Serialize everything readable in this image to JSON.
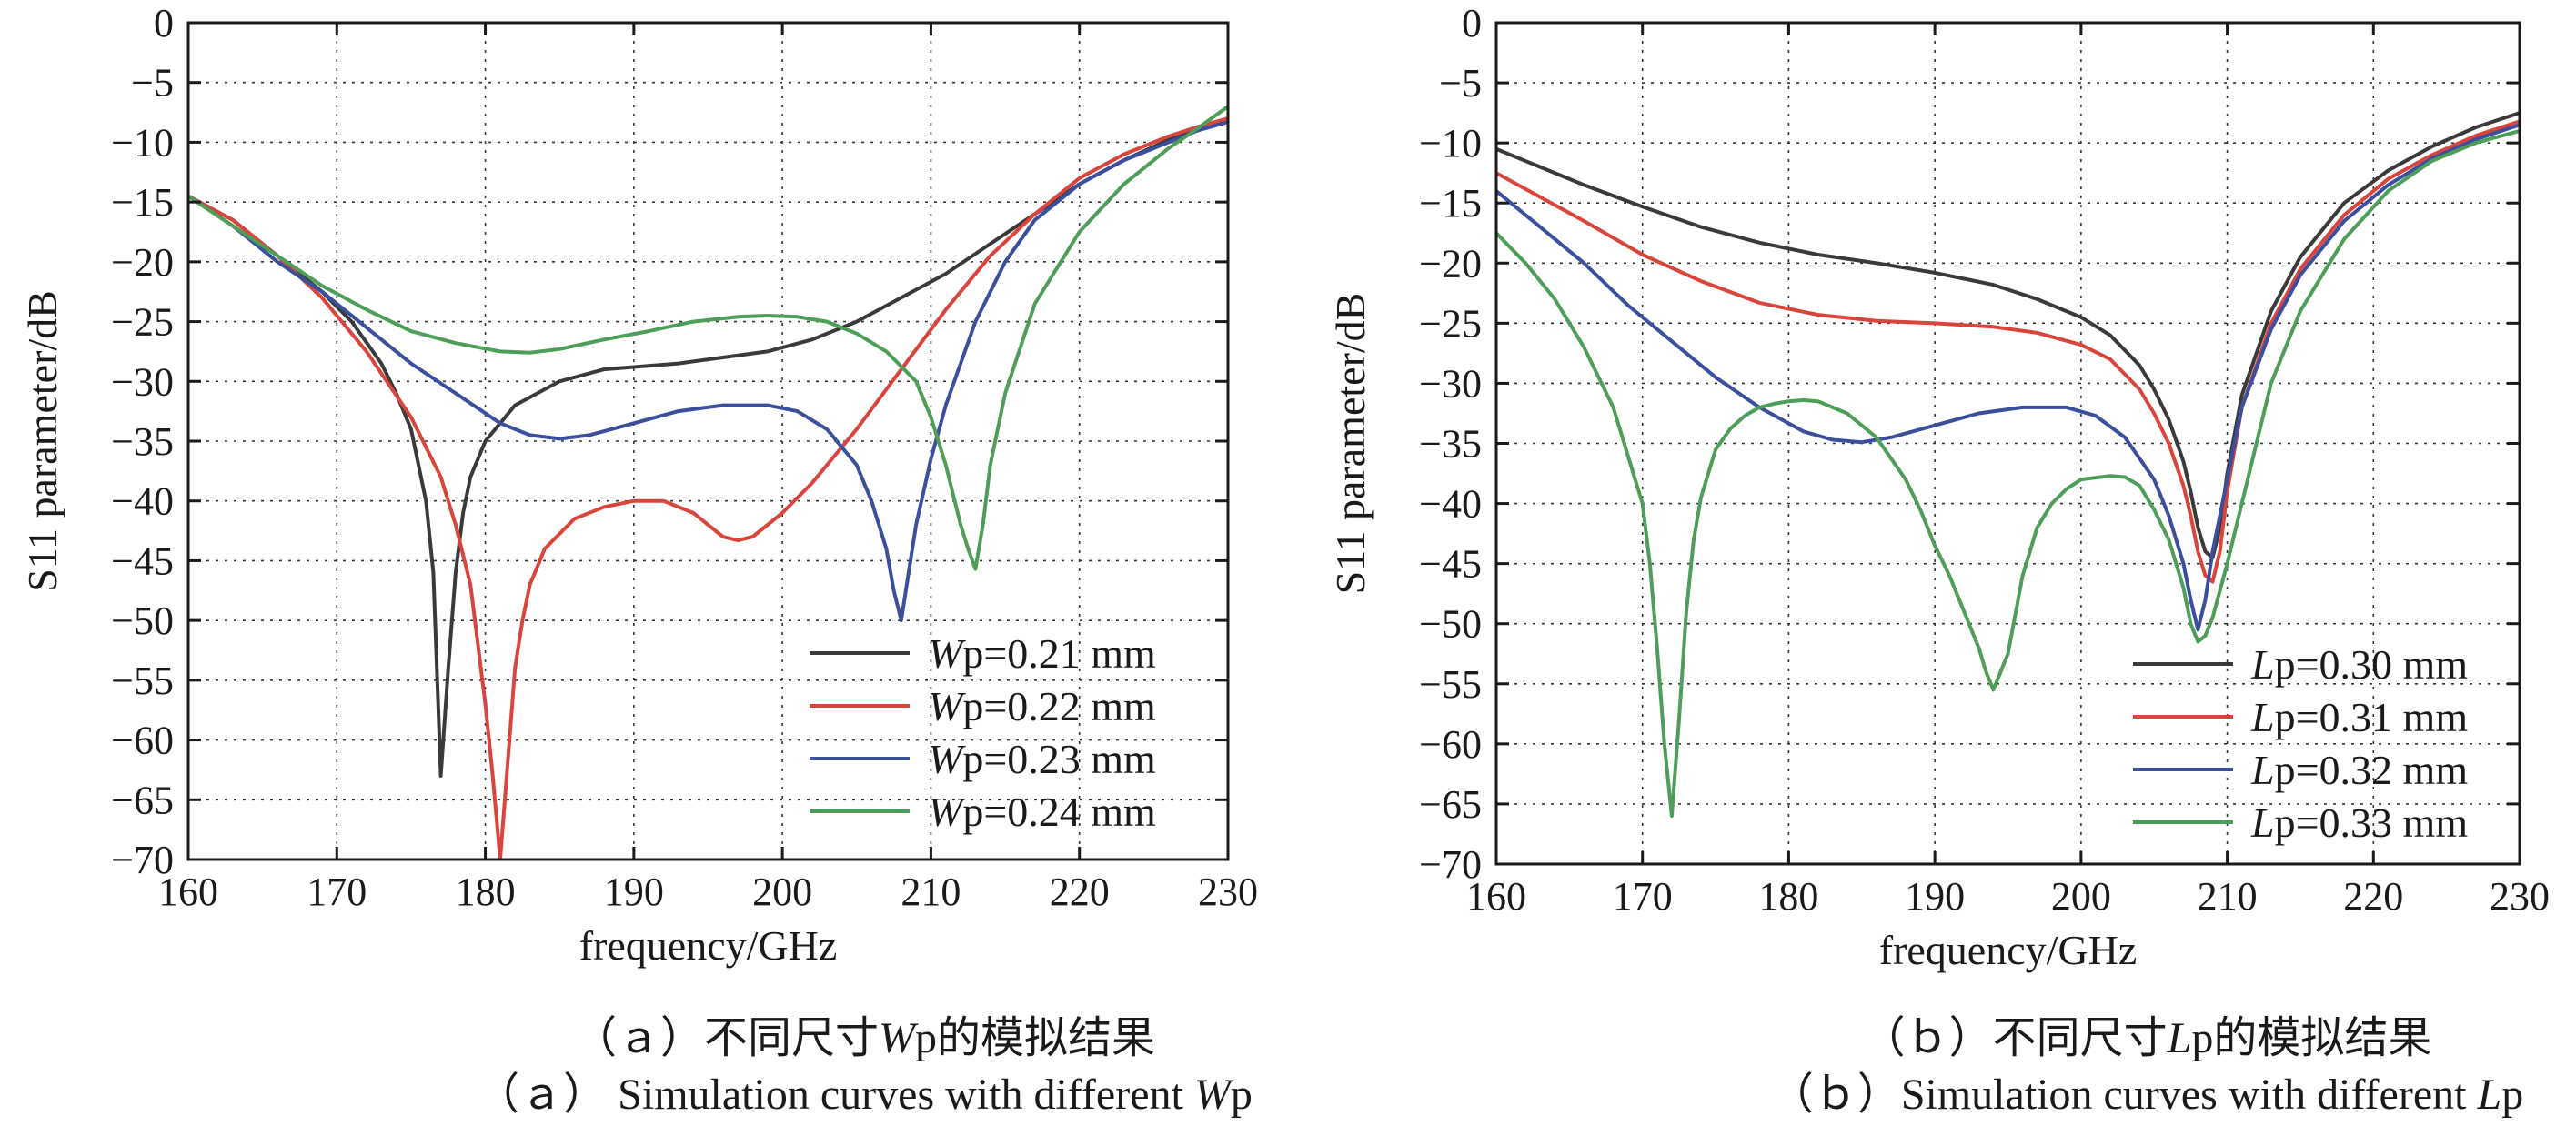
{
  "chart_data": [
    {
      "type": "line",
      "xlabel": "frequency/GHz",
      "ylabel": "S11 parameter/dB",
      "xlim": [
        160,
        230
      ],
      "ylim": [
        -70,
        0
      ],
      "xticks": [
        160,
        170,
        180,
        190,
        200,
        210,
        220,
        230
      ],
      "yticks": [
        0,
        -5,
        -10,
        -15,
        -20,
        -25,
        -30,
        -35,
        -40,
        -45,
        -50,
        -55,
        -60,
        -65,
        -70
      ],
      "grid": true,
      "legend_position": "bottom-right",
      "caption_cn": {
        "prefix": "（ａ）不同尺寸",
        "var": "W",
        "suffix": "p的模拟结果"
      },
      "caption_en": {
        "prefix": "（ａ） Simulation curves with different ",
        "var": "W",
        "suffix": "p"
      },
      "series": [
        {
          "name_var": "W",
          "name_rest": "p=0.21 mm",
          "color": "#3a3a3a",
          "x": [
            160,
            163,
            166,
            169,
            171,
            173,
            174,
            175,
            176,
            176.5,
            177,
            177.5,
            178,
            178.5,
            179,
            180,
            182,
            185,
            188,
            190,
            193,
            196,
            199,
            202,
            205,
            208,
            211,
            214,
            217,
            220,
            223,
            226,
            228,
            230
          ],
          "y": [
            -14.5,
            -16.5,
            -19.5,
            -22.5,
            -25,
            -28.5,
            -31,
            -34,
            -40,
            -46,
            -63,
            -54,
            -46,
            -41,
            -38,
            -35,
            -32,
            -30,
            -29,
            -28.8,
            -28.5,
            -28,
            -27.5,
            -26.5,
            -25,
            -23,
            -21,
            -18.5,
            -16,
            -13.5,
            -11.5,
            -9.8,
            -8.8,
            -8
          ]
        },
        {
          "name_var": "W",
          "name_rest": "p=0.22 mm",
          "color": "#d9443c",
          "x": [
            160,
            163,
            166,
            169,
            172,
            175,
            177,
            178,
            179,
            179.5,
            180,
            180.5,
            181,
            181.5,
            182,
            182.5,
            183,
            184,
            186,
            188,
            190,
            192,
            194,
            196,
            197,
            198,
            200,
            202,
            205,
            208,
            211,
            214,
            217,
            220,
            223,
            226,
            228,
            230
          ],
          "y": [
            -14.5,
            -16.5,
            -19.5,
            -23,
            -27.5,
            -33,
            -38,
            -42,
            -47,
            -52,
            -57,
            -63,
            -70,
            -62,
            -54,
            -50,
            -47,
            -44,
            -41.5,
            -40.5,
            -40,
            -40,
            -41,
            -43,
            -43.3,
            -43,
            -41,
            -38.5,
            -34,
            -29,
            -24,
            -19.5,
            -16,
            -13,
            -11,
            -9.5,
            -8.7,
            -8
          ]
        },
        {
          "name_var": "W",
          "name_rest": "p=0.23 mm",
          "color": "#3b4f9c",
          "x": [
            160,
            163,
            166,
            169,
            172,
            175,
            178,
            181,
            183,
            185,
            187,
            190,
            193,
            196,
            199,
            201,
            203,
            205,
            206,
            207,
            207.5,
            208,
            208.5,
            209,
            210,
            211,
            213,
            215,
            217,
            220,
            223,
            226,
            228,
            230
          ],
          "y": [
            -14.5,
            -17,
            -20,
            -22.5,
            -25.5,
            -28.5,
            -31,
            -33.5,
            -34.5,
            -34.8,
            -34.5,
            -33.5,
            -32.5,
            -32,
            -32,
            -32.5,
            -34,
            -37,
            -40,
            -44,
            -47.5,
            -50,
            -46,
            -42,
            -36.5,
            -32,
            -25,
            -20,
            -16.5,
            -13.5,
            -11.5,
            -10,
            -9,
            -8.3
          ]
        },
        {
          "name_var": "W",
          "name_rest": "p=0.24 mm",
          "color": "#4e9e5a",
          "x": [
            160,
            163,
            166,
            169,
            172,
            175,
            178,
            181,
            183,
            185,
            188,
            191,
            194,
            197,
            199,
            201,
            203,
            205,
            207,
            209,
            210,
            211,
            212,
            212.5,
            213,
            213.5,
            214,
            215,
            217,
            220,
            223,
            226,
            228,
            230
          ],
          "y": [
            -14.5,
            -17,
            -19.5,
            -22,
            -24,
            -25.8,
            -26.8,
            -27.5,
            -27.6,
            -27.3,
            -26.5,
            -25.8,
            -25,
            -24.6,
            -24.5,
            -24.6,
            -25,
            -26,
            -27.5,
            -30,
            -33,
            -37,
            -42,
            -44,
            -45.7,
            -42,
            -37,
            -31,
            -23.5,
            -17.5,
            -13.5,
            -10.5,
            -8.8,
            -7
          ]
        }
      ]
    },
    {
      "type": "line",
      "xlabel": "frequency/GHz",
      "ylabel": "S11 parameter/dB",
      "xlim": [
        160,
        230
      ],
      "ylim": [
        -70,
        0
      ],
      "xticks": [
        160,
        170,
        180,
        190,
        200,
        210,
        220,
        230
      ],
      "yticks": [
        0,
        -5,
        -10,
        -15,
        -20,
        -25,
        -30,
        -35,
        -40,
        -45,
        -50,
        -55,
        -60,
        -65,
        -70
      ],
      "grid": true,
      "legend_position": "bottom-right",
      "caption_cn": {
        "prefix": "（ｂ）不同尺寸",
        "var": "L",
        "suffix": "p的模拟结果"
      },
      "caption_en": {
        "prefix": "（ｂ）Simulation curves with different ",
        "var": "L",
        "suffix": "p"
      },
      "series": [
        {
          "name_var": "L",
          "name_rest": "p=0.30 mm",
          "color": "#3a3a3a",
          "x": [
            160,
            163,
            166,
            170,
            174,
            178,
            182,
            186,
            190,
            194,
            197,
            200,
            202,
            204,
            205,
            206,
            207,
            207.5,
            208,
            208.5,
            209,
            209.5,
            210,
            211,
            213,
            215,
            218,
            221,
            224,
            227,
            230
          ],
          "y": [
            -10.5,
            -12,
            -13.5,
            -15.3,
            -17,
            -18.3,
            -19.3,
            -20,
            -20.8,
            -21.8,
            -23,
            -24.5,
            -26,
            -28.5,
            -30.5,
            -33,
            -36.5,
            -39,
            -42,
            -44,
            -44.5,
            -42,
            -37.5,
            -31,
            -24,
            -19.5,
            -15,
            -12.3,
            -10.3,
            -8.7,
            -7.5
          ]
        },
        {
          "name_var": "L",
          "name_rest": "p=0.31 mm",
          "color": "#d9443c",
          "x": [
            160,
            163,
            166,
            170,
            174,
            178,
            182,
            186,
            190,
            194,
            197,
            200,
            202,
            204,
            205,
            206,
            207,
            207.5,
            208,
            208.5,
            209,
            209.5,
            210,
            211,
            213,
            215,
            218,
            221,
            224,
            227,
            230
          ],
          "y": [
            -12.5,
            -14.5,
            -16.5,
            -19.3,
            -21.5,
            -23.3,
            -24.3,
            -24.8,
            -25,
            -25.3,
            -25.8,
            -26.8,
            -28,
            -30.5,
            -32.5,
            -35,
            -38.5,
            -41,
            -44,
            -46,
            -46.5,
            -44,
            -39,
            -32,
            -25,
            -20.5,
            -16,
            -13,
            -11,
            -9.4,
            -8.2
          ]
        },
        {
          "name_var": "L",
          "name_rest": "p=0.32 mm",
          "color": "#3b4f9c",
          "x": [
            160,
            163,
            166,
            169,
            172,
            175,
            178,
            181,
            183,
            185,
            187,
            190,
            193,
            196,
            199,
            201,
            203,
            205,
            206,
            207,
            207.5,
            208,
            208.5,
            209,
            210,
            211,
            213,
            215,
            218,
            221,
            224,
            227,
            230
          ],
          "y": [
            -14,
            -17,
            -20,
            -23.5,
            -26.5,
            -29.5,
            -32,
            -34,
            -34.7,
            -34.9,
            -34.5,
            -33.5,
            -32.5,
            -32,
            -32,
            -32.7,
            -34.5,
            -38,
            -41,
            -45,
            -48,
            -50.5,
            -48,
            -44,
            -38,
            -32,
            -25.5,
            -21,
            -16.5,
            -13.5,
            -11.3,
            -9.7,
            -8.5
          ]
        },
        {
          "name_var": "L",
          "name_rest": "p=0.33 mm",
          "color": "#4e9e5a",
          "x": [
            160,
            162,
            164,
            166,
            168,
            169,
            170,
            170.5,
            171,
            171.5,
            172,
            172.5,
            173,
            173.5,
            174,
            175,
            176,
            177,
            178,
            179,
            180,
            181,
            182,
            184,
            186,
            188,
            189,
            190,
            191,
            192,
            193,
            193.5,
            194,
            194.5,
            195,
            196,
            197,
            198,
            199,
            200,
            202,
            203,
            204,
            205,
            206,
            207,
            207.5,
            208,
            208.5,
            209,
            210,
            211,
            213,
            215,
            218,
            221,
            224,
            227,
            230
          ],
          "y": [
            -17.5,
            -20,
            -23,
            -27,
            -32,
            -36,
            -40,
            -45,
            -52,
            -60,
            -66,
            -58,
            -49,
            -43,
            -39.5,
            -35.5,
            -33.8,
            -32.7,
            -32,
            -31.7,
            -31.5,
            -31.4,
            -31.5,
            -32.5,
            -34.5,
            -38,
            -40.5,
            -43.5,
            -46,
            -49,
            -52,
            -54,
            -55.5,
            -54,
            -52.5,
            -46,
            -42,
            -40,
            -38.8,
            -38,
            -37.7,
            -37.8,
            -38.5,
            -40.5,
            -43,
            -47,
            -50,
            -51.5,
            -51,
            -49.5,
            -45,
            -40,
            -30,
            -24,
            -18,
            -14,
            -11.5,
            -10,
            -9
          ]
        }
      ]
    }
  ]
}
